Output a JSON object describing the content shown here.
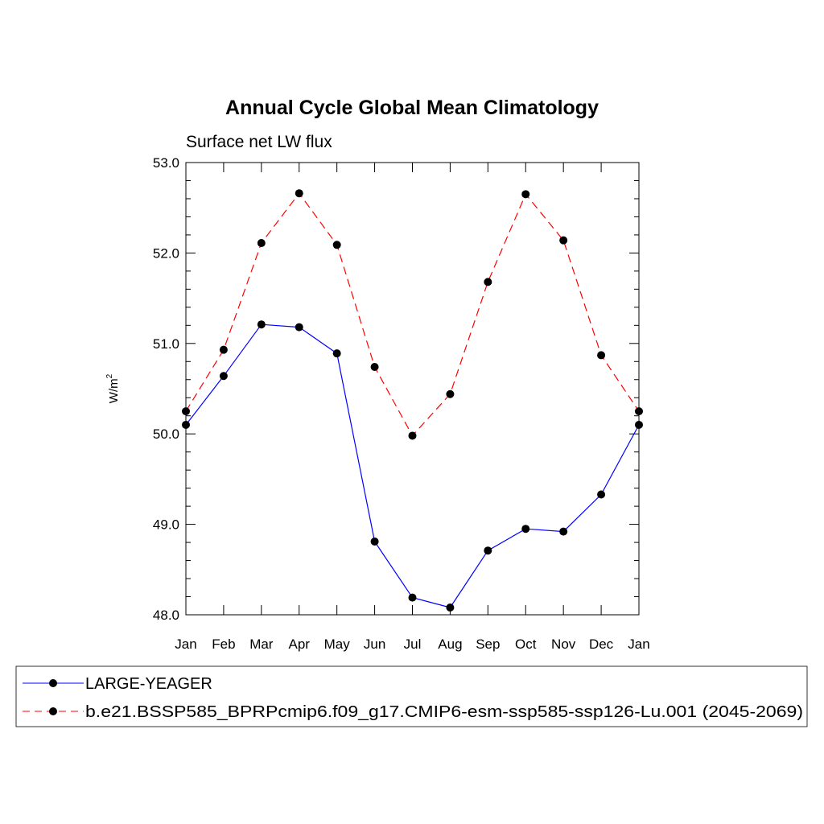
{
  "chart_data": {
    "type": "line",
    "title": "Annual Cycle Global Mean Climatology",
    "subtitle": "Surface net LW flux",
    "ylabel": "W/m",
    "ylabel_superscript": "2",
    "xlabel": "",
    "categories": [
      "Jan",
      "Feb",
      "Mar",
      "Apr",
      "May",
      "Jun",
      "Jul",
      "Aug",
      "Sep",
      "Oct",
      "Nov",
      "Dec",
      "Jan"
    ],
    "ylim": [
      48.0,
      53.0
    ],
    "yticks": [
      "48.0",
      "49.0",
      "50.0",
      "51.0",
      "52.0",
      "53.0"
    ],
    "grid": false,
    "legend_placement": "bottom",
    "series": [
      {
        "name": "LARGE-YEAGER",
        "color": "#0000ff",
        "style": "solid",
        "marker": "filled-circle",
        "values": [
          50.1,
          50.64,
          51.21,
          51.18,
          50.89,
          48.81,
          48.19,
          48.08,
          48.71,
          48.95,
          48.92,
          49.33,
          50.1
        ]
      },
      {
        "name": "b.e21.BSSP585_BPRPcmip6.f09_g17.CMIP6-esm-ssp585-ssp126-Lu.001 (2045-2069)",
        "color": "#ff0000",
        "style": "dashed",
        "marker": "filled-circle",
        "values": [
          50.25,
          50.93,
          52.11,
          52.66,
          52.09,
          50.74,
          49.98,
          50.44,
          51.68,
          52.65,
          52.14,
          50.87,
          50.25
        ]
      }
    ]
  }
}
